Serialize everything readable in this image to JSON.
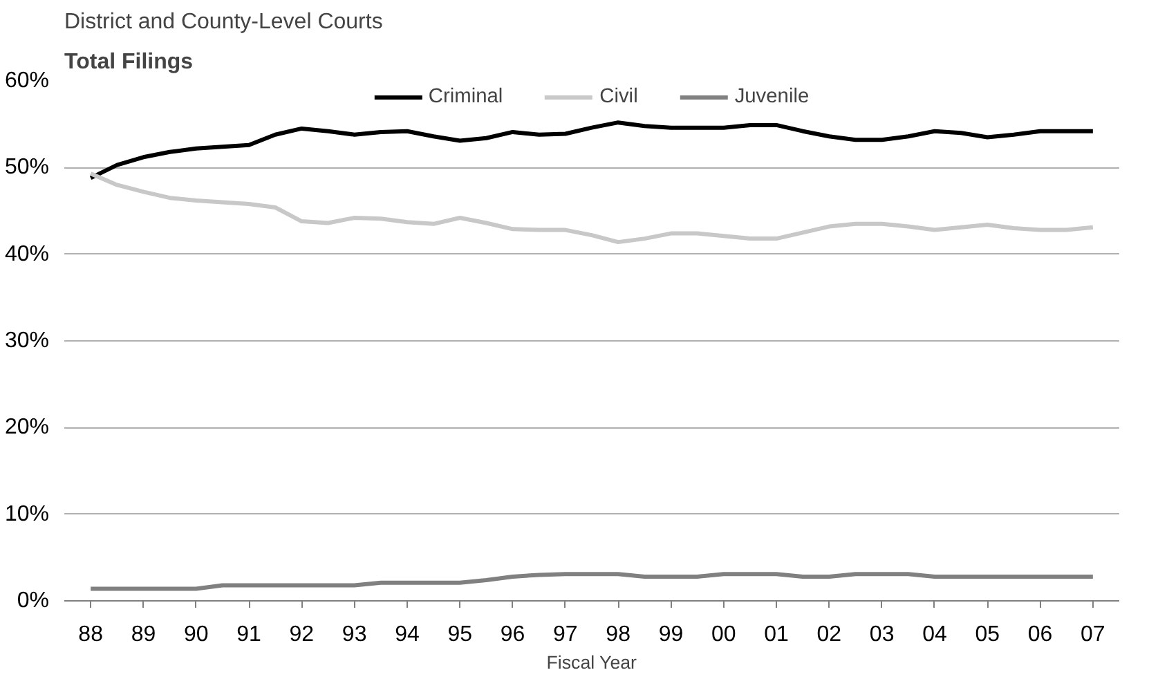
{
  "chart_data": {
    "type": "line",
    "title": "District and County-Level Courts",
    "subtitle": "Total Filings",
    "xlabel": "Fiscal Year",
    "x": [
      1988,
      1988.5,
      1989,
      1989.5,
      1990,
      1990.5,
      1991,
      1991.5,
      1992,
      1992.5,
      1993,
      1993.5,
      1994,
      1994.5,
      1995,
      1995.5,
      1996,
      1996.5,
      1997,
      1997.5,
      1998,
      1998.5,
      1999,
      1999.5,
      2000,
      2000.5,
      2001,
      2001.5,
      2002,
      2002.5,
      2003,
      2003.5,
      2004,
      2004.5,
      2005,
      2005.5,
      2006,
      2006.5,
      2007
    ],
    "series": [
      {
        "name": "Criminal",
        "color": "#000000",
        "values": [
          48.8,
          50.3,
          51.2,
          51.8,
          52.2,
          52.4,
          52.6,
          53.8,
          54.5,
          54.2,
          53.8,
          54.1,
          54.2,
          53.6,
          53.1,
          53.4,
          54.1,
          53.8,
          53.9,
          54.6,
          55.2,
          54.8,
          54.6,
          54.6,
          54.6,
          54.9,
          54.9,
          54.2,
          53.6,
          53.2,
          53.2,
          53.6,
          54.2,
          54.0,
          53.5,
          53.8,
          54.2,
          54.2,
          54.2
        ]
      },
      {
        "name": "Civil",
        "color": "#c8c8c8",
        "values": [
          49.3,
          48.0,
          47.2,
          46.5,
          46.2,
          46.0,
          45.8,
          45.4,
          43.8,
          43.6,
          44.2,
          44.1,
          43.7,
          43.5,
          44.2,
          43.6,
          42.9,
          42.8,
          42.8,
          42.2,
          41.4,
          41.8,
          42.4,
          42.4,
          42.1,
          41.8,
          41.8,
          42.5,
          43.2,
          43.5,
          43.5,
          43.2,
          42.8,
          43.1,
          43.4,
          43.0,
          42.8,
          42.8,
          43.1
        ]
      },
      {
        "name": "Juvenile",
        "color": "#808080",
        "values": [
          1.4,
          1.4,
          1.4,
          1.4,
          1.4,
          1.8,
          1.8,
          1.8,
          1.8,
          1.8,
          1.8,
          2.1,
          2.1,
          2.1,
          2.1,
          2.4,
          2.8,
          3.0,
          3.1,
          3.1,
          3.1,
          2.8,
          2.8,
          2.8,
          3.1,
          3.1,
          3.1,
          2.8,
          2.8,
          3.1,
          3.1,
          3.1,
          2.8,
          2.8,
          2.8,
          2.8,
          2.8,
          2.8,
          2.8
        ]
      }
    ],
    "xlim": [
      1987.5,
      2007.5
    ],
    "xticks": [
      {
        "value": 1988,
        "label": "88"
      },
      {
        "value": 1989,
        "label": "89"
      },
      {
        "value": 1990,
        "label": "90"
      },
      {
        "value": 1991,
        "label": "91"
      },
      {
        "value": 1992,
        "label": "92"
      },
      {
        "value": 1993,
        "label": "93"
      },
      {
        "value": 1994,
        "label": "94"
      },
      {
        "value": 1995,
        "label": "95"
      },
      {
        "value": 1996,
        "label": "96"
      },
      {
        "value": 1997,
        "label": "97"
      },
      {
        "value": 1998,
        "label": "98"
      },
      {
        "value": 1999,
        "label": "99"
      },
      {
        "value": 2000,
        "label": "00"
      },
      {
        "value": 2001,
        "label": "01"
      },
      {
        "value": 2002,
        "label": "02"
      },
      {
        "value": 2003,
        "label": "03"
      },
      {
        "value": 2004,
        "label": "04"
      },
      {
        "value": 2005,
        "label": "05"
      },
      {
        "value": 2006,
        "label": "06"
      },
      {
        "value": 2007,
        "label": "07"
      }
    ],
    "ylim": [
      0,
      60
    ],
    "yticks": [
      {
        "value": 0,
        "label": "0%"
      },
      {
        "value": 10,
        "label": "10%"
      },
      {
        "value": 20,
        "label": "20%"
      },
      {
        "value": 30,
        "label": "30%"
      },
      {
        "value": 40,
        "label": "40%"
      },
      {
        "value": 50,
        "label": "50%"
      },
      {
        "value": 60,
        "label": "60%"
      }
    ],
    "grid": "y",
    "legend": "top",
    "marker": "none",
    "line_style": "solid"
  }
}
